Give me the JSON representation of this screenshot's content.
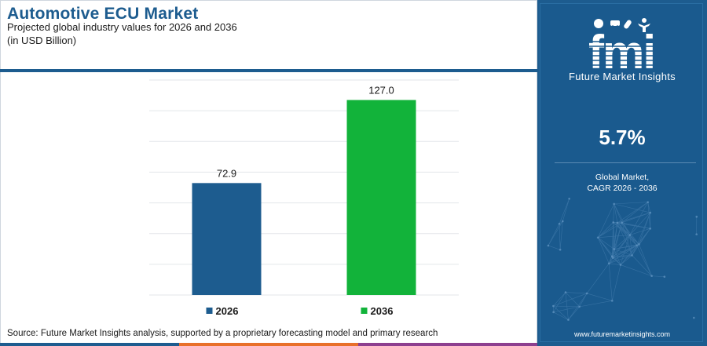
{
  "header": {
    "title": "Automotive ECU Market",
    "subtitle": "Projected global industry values for 2026 and 2036",
    "unit": "(in USD Billion)"
  },
  "chart_data": {
    "type": "bar",
    "categories": [
      "2026",
      "2036"
    ],
    "values": [
      72.9,
      127.0
    ],
    "value_labels": [
      "72.9",
      "127.0"
    ],
    "colors": [
      "#1d5c8f",
      "#12b33a"
    ],
    "title": "Automotive ECU Market",
    "xlabel": "",
    "ylabel": "",
    "ylim": [
      0,
      140
    ],
    "grid": true,
    "legend": "bottom-center"
  },
  "footer": {
    "source": "Source: Future Market Insights analysis, supported by a proprietary forecasting model and primary research",
    "stripe_colors": [
      "#1d5c8f",
      "#e8702a",
      "#8d3f8f"
    ]
  },
  "sidebar": {
    "logo_text": "fmi",
    "brand": "Future Market Insights",
    "cagr_value": "5.7%",
    "cagr_line1": "Global Market,",
    "cagr_line2": "CAGR 2026 - 2036",
    "website": "www.futuremarketinsights.com",
    "logo_icons": [
      "handshake-icon",
      "car-icon",
      "pill-icon",
      "person-icon"
    ]
  }
}
